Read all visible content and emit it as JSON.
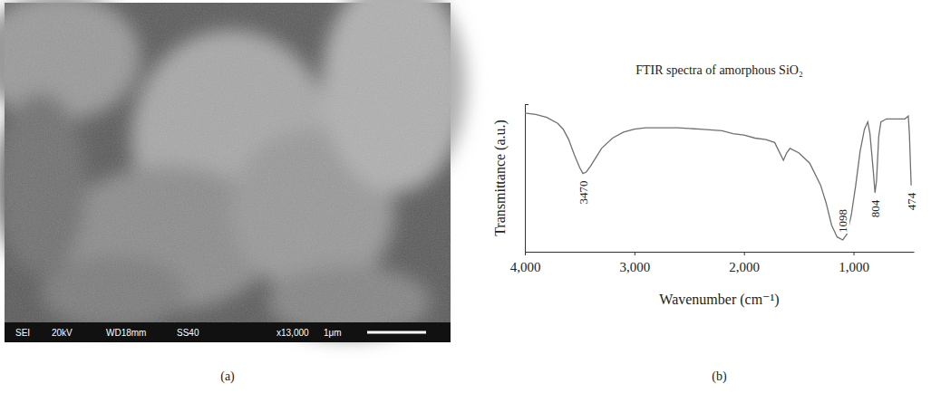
{
  "figure": {
    "panel_labels": [
      "(a)",
      "(b)"
    ],
    "micrograph_info": [
      "SEI",
      "20kV",
      "WD18mm",
      "SS40",
      "x13,000",
      "1μm"
    ]
  },
  "chart_data": {
    "type": "line",
    "title": "FTIR spectra of amorphous SiO₂",
    "x_label": "Wavenumber (cm⁻¹)",
    "y_label": "Transmittance (a.u.)",
    "x": [
      4000,
      3900,
      3800,
      3700,
      3650,
      3600,
      3550,
      3500,
      3470,
      3440,
      3400,
      3350,
      3300,
      3200,
      3100,
      3000,
      2900,
      2800,
      2600,
      2400,
      2200,
      2100,
      2000,
      1900,
      1800,
      1720,
      1680,
      1640,
      1610,
      1580,
      1500,
      1400,
      1300,
      1250,
      1200,
      1150,
      1098,
      1060,
      1020,
      980,
      940,
      900,
      870,
      850,
      820,
      804,
      790,
      770,
      750,
      700,
      600,
      530,
      500,
      490,
      474
    ],
    "values": [
      94,
      93,
      91,
      87,
      83,
      76,
      66,
      57,
      53,
      54,
      58,
      64,
      70,
      77,
      81,
      83,
      84,
      84,
      84,
      83,
      82,
      80,
      79,
      77,
      76,
      74,
      68,
      62,
      67,
      70,
      67,
      60,
      45,
      33,
      18,
      10,
      8,
      12,
      25,
      45,
      68,
      83,
      88,
      80,
      55,
      40,
      48,
      78,
      88,
      90,
      90,
      90,
      92,
      80,
      45
    ],
    "color": "#707070",
    "xlim": [
      4000,
      450
    ],
    "ylim": [
      0,
      100
    ],
    "xticks": [
      {
        "value": 4000,
        "label": "4,000"
      },
      {
        "value": 3000,
        "label": "3,000"
      },
      {
        "value": 2000,
        "label": "2,000"
      },
      {
        "value": 1000,
        "label": "1,000"
      }
    ],
    "yticks": [
      0,
      100
    ],
    "tick_labels": "x",
    "annotations": [
      {
        "x": 3470,
        "y": 53,
        "text": "3470"
      },
      {
        "x": 1098,
        "y": 8,
        "text": "1098"
      },
      {
        "x": 804,
        "y": 40,
        "text": "804"
      },
      {
        "x": 474,
        "y": 45,
        "text": "474"
      }
    ]
  }
}
